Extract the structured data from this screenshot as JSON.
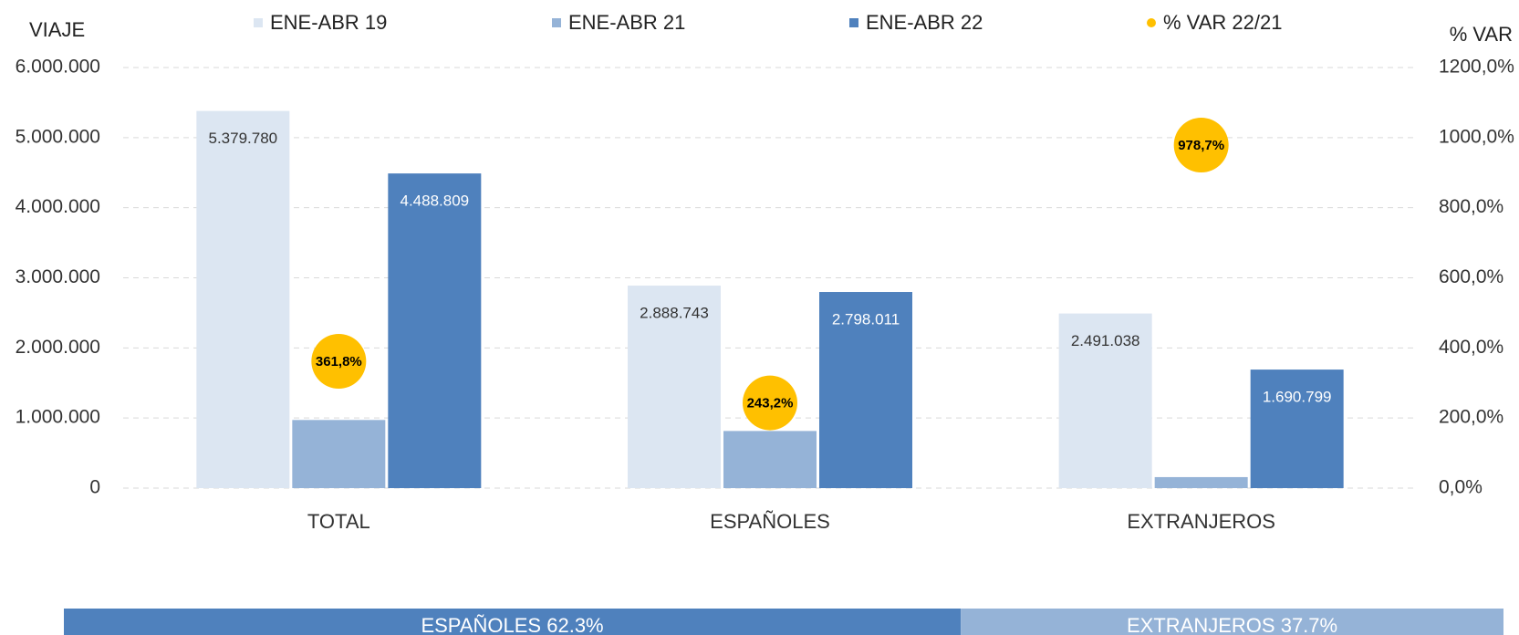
{
  "chart_data": [
    {
      "type": "bar",
      "y_label": "VIAJE",
      "y2_label": "% VAR",
      "categories": [
        "TOTAL",
        "ESPAÑOLES",
        "EXTRANJEROS"
      ],
      "series": [
        {
          "name": "ENE-ABR 19",
          "color": "#dce6f2",
          "values": [
            5379780,
            2888743,
            2491038
          ],
          "value_labels": [
            "5.379.780",
            "2.888.743",
            "2.491.038"
          ]
        },
        {
          "name": "ENE-ABR 21",
          "color": "#95b3d7",
          "values": [
            972000,
            815000,
            157000
          ]
        },
        {
          "name": "ENE-ABR 22",
          "color": "#4f81bd",
          "values": [
            4488809,
            2798011,
            1690799
          ],
          "value_labels": [
            "4.488.809",
            "2.798.011",
            "1.690.799"
          ]
        },
        {
          "name": "% VAR 22/21",
          "color": "#ffc000",
          "axis": "y2",
          "values": [
            361.8,
            243.2,
            978.7
          ],
          "value_labels": [
            "361,8%",
            "243,2%",
            "978,7%"
          ]
        }
      ],
      "ylim": [
        0,
        6000000
      ],
      "yticks": [
        0,
        {
          "value": 1000000,
          "label": "1.000.000"
        },
        {
          "value": 2000000,
          "label": "2.000.000"
        },
        {
          "value": 3000000,
          "label": "3.000.000"
        },
        {
          "value": 4000000,
          "label": "4.000.000"
        },
        {
          "value": 5000000,
          "label": "5.000.000"
        },
        {
          "value": 6000000,
          "label": "6.000.000"
        }
      ],
      "y2lim": [
        0,
        1200
      ],
      "y2ticks": [
        {
          "value": 0,
          "label": "0,0%"
        },
        {
          "value": 200,
          "label": "200,0%"
        },
        {
          "value": 400,
          "label": "400,0%"
        },
        {
          "value": 600,
          "label": "600,0%"
        },
        {
          "value": 800,
          "label": "800,0%"
        },
        {
          "value": 1000,
          "label": "1000,0%"
        },
        {
          "value": 1200,
          "label": "1200,0%"
        }
      ],
      "grid": true
    },
    {
      "type": "share",
      "series": [
        {
          "name": "ESPAÑOLES",
          "color": "#4f81bd",
          "values": [
            62.3
          ],
          "value_labels": [
            "62.3%"
          ]
        },
        {
          "name": "EXTRANJEROS",
          "color": "#95b3d7",
          "values": [
            37.7
          ],
          "value_labels": [
            "37.7%"
          ]
        }
      ]
    }
  ]
}
